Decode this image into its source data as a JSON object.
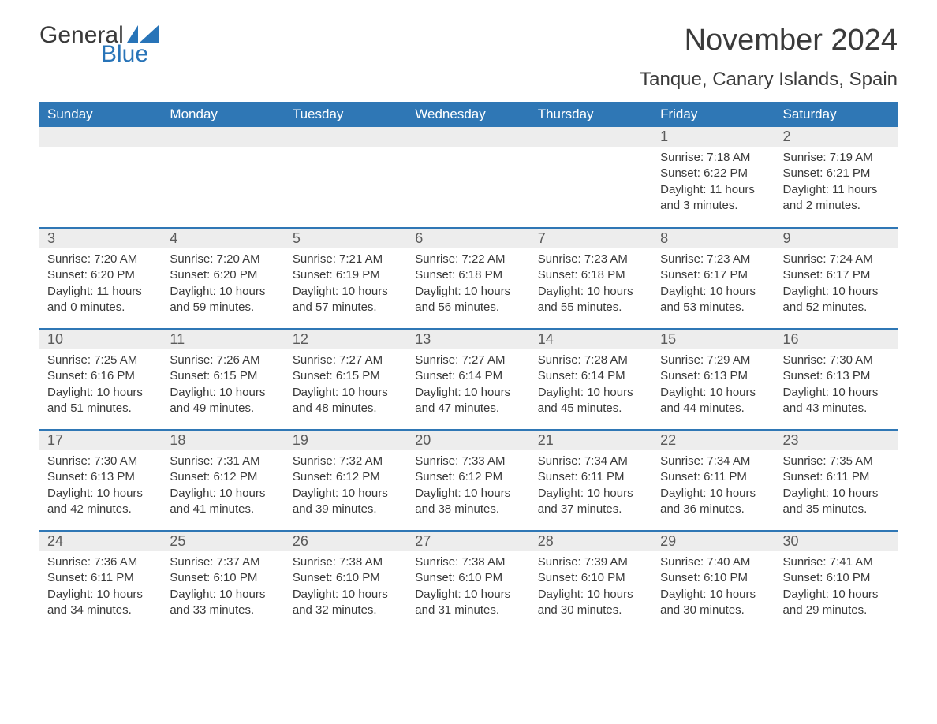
{
  "colors": {
    "brand_blue": "#2f77b5",
    "logo_blue": "#2874b8",
    "text_dark": "#3a3a3a",
    "daynum_bg": "#ededed",
    "white": "#ffffff"
  },
  "typography": {
    "month_title_size_pt": 29,
    "location_size_pt": 18,
    "header_cell_size_pt": 13,
    "daynum_size_pt": 14,
    "body_size_pt": 11
  },
  "logo": {
    "text_general": "General",
    "text_blue": "Blue",
    "flag_color": "#2874b8"
  },
  "header": {
    "month_title": "November 2024",
    "location": "Tanque, Canary Islands, Spain"
  },
  "calendar": {
    "day_headers": [
      "Sunday",
      "Monday",
      "Tuesday",
      "Wednesday",
      "Thursday",
      "Friday",
      "Saturday"
    ],
    "weeks": [
      [
        null,
        null,
        null,
        null,
        null,
        {
          "day": "1",
          "sunrise": "Sunrise: 7:18 AM",
          "sunset": "Sunset: 6:22 PM",
          "daylight": "Daylight: 11 hours and 3 minutes."
        },
        {
          "day": "2",
          "sunrise": "Sunrise: 7:19 AM",
          "sunset": "Sunset: 6:21 PM",
          "daylight": "Daylight: 11 hours and 2 minutes."
        }
      ],
      [
        {
          "day": "3",
          "sunrise": "Sunrise: 7:20 AM",
          "sunset": "Sunset: 6:20 PM",
          "daylight": "Daylight: 11 hours and 0 minutes."
        },
        {
          "day": "4",
          "sunrise": "Sunrise: 7:20 AM",
          "sunset": "Sunset: 6:20 PM",
          "daylight": "Daylight: 10 hours and 59 minutes."
        },
        {
          "day": "5",
          "sunrise": "Sunrise: 7:21 AM",
          "sunset": "Sunset: 6:19 PM",
          "daylight": "Daylight: 10 hours and 57 minutes."
        },
        {
          "day": "6",
          "sunrise": "Sunrise: 7:22 AM",
          "sunset": "Sunset: 6:18 PM",
          "daylight": "Daylight: 10 hours and 56 minutes."
        },
        {
          "day": "7",
          "sunrise": "Sunrise: 7:23 AM",
          "sunset": "Sunset: 6:18 PM",
          "daylight": "Daylight: 10 hours and 55 minutes."
        },
        {
          "day": "8",
          "sunrise": "Sunrise: 7:23 AM",
          "sunset": "Sunset: 6:17 PM",
          "daylight": "Daylight: 10 hours and 53 minutes."
        },
        {
          "day": "9",
          "sunrise": "Sunrise: 7:24 AM",
          "sunset": "Sunset: 6:17 PM",
          "daylight": "Daylight: 10 hours and 52 minutes."
        }
      ],
      [
        {
          "day": "10",
          "sunrise": "Sunrise: 7:25 AM",
          "sunset": "Sunset: 6:16 PM",
          "daylight": "Daylight: 10 hours and 51 minutes."
        },
        {
          "day": "11",
          "sunrise": "Sunrise: 7:26 AM",
          "sunset": "Sunset: 6:15 PM",
          "daylight": "Daylight: 10 hours and 49 minutes."
        },
        {
          "day": "12",
          "sunrise": "Sunrise: 7:27 AM",
          "sunset": "Sunset: 6:15 PM",
          "daylight": "Daylight: 10 hours and 48 minutes."
        },
        {
          "day": "13",
          "sunrise": "Sunrise: 7:27 AM",
          "sunset": "Sunset: 6:14 PM",
          "daylight": "Daylight: 10 hours and 47 minutes."
        },
        {
          "day": "14",
          "sunrise": "Sunrise: 7:28 AM",
          "sunset": "Sunset: 6:14 PM",
          "daylight": "Daylight: 10 hours and 45 minutes."
        },
        {
          "day": "15",
          "sunrise": "Sunrise: 7:29 AM",
          "sunset": "Sunset: 6:13 PM",
          "daylight": "Daylight: 10 hours and 44 minutes."
        },
        {
          "day": "16",
          "sunrise": "Sunrise: 7:30 AM",
          "sunset": "Sunset: 6:13 PM",
          "daylight": "Daylight: 10 hours and 43 minutes."
        }
      ],
      [
        {
          "day": "17",
          "sunrise": "Sunrise: 7:30 AM",
          "sunset": "Sunset: 6:13 PM",
          "daylight": "Daylight: 10 hours and 42 minutes."
        },
        {
          "day": "18",
          "sunrise": "Sunrise: 7:31 AM",
          "sunset": "Sunset: 6:12 PM",
          "daylight": "Daylight: 10 hours and 41 minutes."
        },
        {
          "day": "19",
          "sunrise": "Sunrise: 7:32 AM",
          "sunset": "Sunset: 6:12 PM",
          "daylight": "Daylight: 10 hours and 39 minutes."
        },
        {
          "day": "20",
          "sunrise": "Sunrise: 7:33 AM",
          "sunset": "Sunset: 6:12 PM",
          "daylight": "Daylight: 10 hours and 38 minutes."
        },
        {
          "day": "21",
          "sunrise": "Sunrise: 7:34 AM",
          "sunset": "Sunset: 6:11 PM",
          "daylight": "Daylight: 10 hours and 37 minutes."
        },
        {
          "day": "22",
          "sunrise": "Sunrise: 7:34 AM",
          "sunset": "Sunset: 6:11 PM",
          "daylight": "Daylight: 10 hours and 36 minutes."
        },
        {
          "day": "23",
          "sunrise": "Sunrise: 7:35 AM",
          "sunset": "Sunset: 6:11 PM",
          "daylight": "Daylight: 10 hours and 35 minutes."
        }
      ],
      [
        {
          "day": "24",
          "sunrise": "Sunrise: 7:36 AM",
          "sunset": "Sunset: 6:11 PM",
          "daylight": "Daylight: 10 hours and 34 minutes."
        },
        {
          "day": "25",
          "sunrise": "Sunrise: 7:37 AM",
          "sunset": "Sunset: 6:10 PM",
          "daylight": "Daylight: 10 hours and 33 minutes."
        },
        {
          "day": "26",
          "sunrise": "Sunrise: 7:38 AM",
          "sunset": "Sunset: 6:10 PM",
          "daylight": "Daylight: 10 hours and 32 minutes."
        },
        {
          "day": "27",
          "sunrise": "Sunrise: 7:38 AM",
          "sunset": "Sunset: 6:10 PM",
          "daylight": "Daylight: 10 hours and 31 minutes."
        },
        {
          "day": "28",
          "sunrise": "Sunrise: 7:39 AM",
          "sunset": "Sunset: 6:10 PM",
          "daylight": "Daylight: 10 hours and 30 minutes."
        },
        {
          "day": "29",
          "sunrise": "Sunrise: 7:40 AM",
          "sunset": "Sunset: 6:10 PM",
          "daylight": "Daylight: 10 hours and 30 minutes."
        },
        {
          "day": "30",
          "sunrise": "Sunrise: 7:41 AM",
          "sunset": "Sunset: 6:10 PM",
          "daylight": "Daylight: 10 hours and 29 minutes."
        }
      ]
    ]
  }
}
